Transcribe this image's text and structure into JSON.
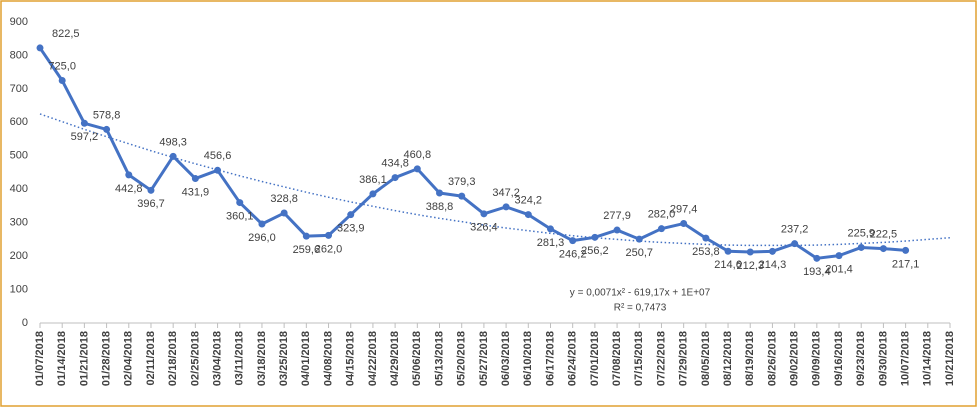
{
  "chart_data": {
    "type": "line",
    "categories": [
      "01/07/2018",
      "01/14/2018",
      "01/21/2018",
      "01/28/2018",
      "02/04/2018",
      "02/11/2018",
      "02/18/2018",
      "02/25/2018",
      "03/04/2018",
      "03/11/2018",
      "03/18/2018",
      "03/25/2018",
      "04/01/2018",
      "04/08/2018",
      "04/15/2018",
      "04/22/2018",
      "04/29/2018",
      "05/06/2018",
      "05/13/2018",
      "05/20/2018",
      "05/27/2018",
      "06/03/2018",
      "06/10/2018",
      "06/17/2018",
      "06/24/2018",
      "07/01/2018",
      "07/08/2018",
      "07/15/2018",
      "07/22/2018",
      "07/29/2018",
      "08/05/2018",
      "08/12/2018",
      "08/19/2018",
      "08/26/2018",
      "09/02/2018",
      "09/09/2018",
      "09/16/2018",
      "09/23/2018",
      "09/30/2018",
      "10/07/2018",
      "10/14/2018",
      "10/21/2018"
    ],
    "series": [
      {
        "color": "#4472c4",
        "values": [
          822.5,
          725.0,
          597.2,
          578.8,
          442.8,
          396.7,
          498.3,
          431.9,
          456.6,
          360.1,
          296.0,
          328.8,
          259.6,
          262.0,
          323.9,
          386.1,
          434.8,
          460.8,
          388.8,
          379.3,
          326.4,
          347.2,
          324.2,
          281.3,
          246.2,
          256.2,
          277.9,
          250.7,
          282.0,
          297.4,
          253.8,
          214.6,
          212.3,
          214.3,
          237.2,
          193.4,
          201.4,
          225.9,
          222.5,
          217.1,
          null,
          null
        ],
        "value_labels": [
          "822,5",
          "725,0",
          "597,2",
          "578,8",
          "442,8",
          "396,7",
          "498,3",
          "431,9",
          "456,6",
          "360,1",
          "296,0",
          "328,8",
          "259,6",
          "262,0",
          "323,9",
          "386,1",
          "434,8",
          "460,8",
          "388,8",
          "379,3",
          "326,4",
          "347,2",
          "324,2",
          "281,3",
          "246,2",
          "256,2",
          "277,9",
          "250,7",
          "282,0",
          "297,4",
          "253,8",
          "214,6",
          "212,3",
          "214,3",
          "237,2",
          "193,4",
          "201,4",
          "225,9",
          "222,5",
          "217,1",
          null,
          null
        ]
      }
    ],
    "trendline": {
      "color": "#4472c4",
      "values": [
        625,
        602,
        579,
        557,
        536,
        515,
        495,
        476,
        458,
        440,
        423,
        407,
        391,
        376,
        362,
        349,
        336,
        324,
        313,
        303,
        293,
        284,
        276,
        268,
        261,
        255,
        250,
        245,
        241,
        238,
        235,
        233,
        232,
        232,
        232,
        233,
        235,
        238,
        241,
        245,
        250,
        255
      ],
      "equation": "y = 0,0071x² - 619,17x + 1E+07",
      "r_squared": "R² = 0,7473"
    },
    "ylim": [
      0,
      900
    ],
    "yticks": [
      0,
      100,
      200,
      300,
      400,
      500,
      600,
      700,
      800,
      900
    ],
    "grid": false
  }
}
